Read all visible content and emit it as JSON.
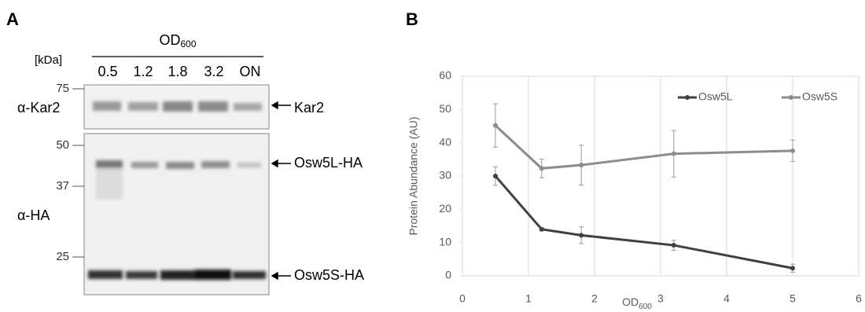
{
  "panel_a": {
    "panel_label": "A",
    "od": "OD",
    "od_sub": "600",
    "kda": "[kDa]",
    "lanes": [
      "0.5",
      "1.2",
      "1.8",
      "3.2",
      "ON"
    ],
    "markers": [
      "75",
      "50",
      "37",
      "25"
    ],
    "antibodies": [
      "α-Kar2",
      "α-HA"
    ],
    "bands": [
      "Kar2",
      "Osw5L-HA",
      "Osw5S-HA"
    ]
  },
  "chart_data": {
    "type": "line",
    "panel_label": "B",
    "x_label": "OD",
    "x_label_sub": "600",
    "y_label": "Protein Abundance (AU)",
    "x": [
      0.5,
      1.2,
      1.8,
      3.2,
      5
    ],
    "series": [
      {
        "name": "Osw5L",
        "color": "#404040",
        "values": [
          30,
          14,
          12.2,
          9.2,
          2.3
        ],
        "errors": [
          2.8,
          0.5,
          2.5,
          1.5,
          1.2
        ]
      },
      {
        "name": "Osw5S",
        "color": "#8c8c8c",
        "values": [
          45.2,
          32.3,
          33.3,
          36.7,
          37.6
        ],
        "errors": [
          6.5,
          2.8,
          6,
          7,
          3.2
        ]
      }
    ],
    "xlim": [
      0,
      6
    ],
    "xticks": [
      0,
      1,
      2,
      3,
      4,
      5,
      6
    ],
    "ylim": [
      0,
      60
    ],
    "yticks": [
      0,
      10,
      20,
      30,
      40,
      50,
      60
    ],
    "grid": "x"
  }
}
